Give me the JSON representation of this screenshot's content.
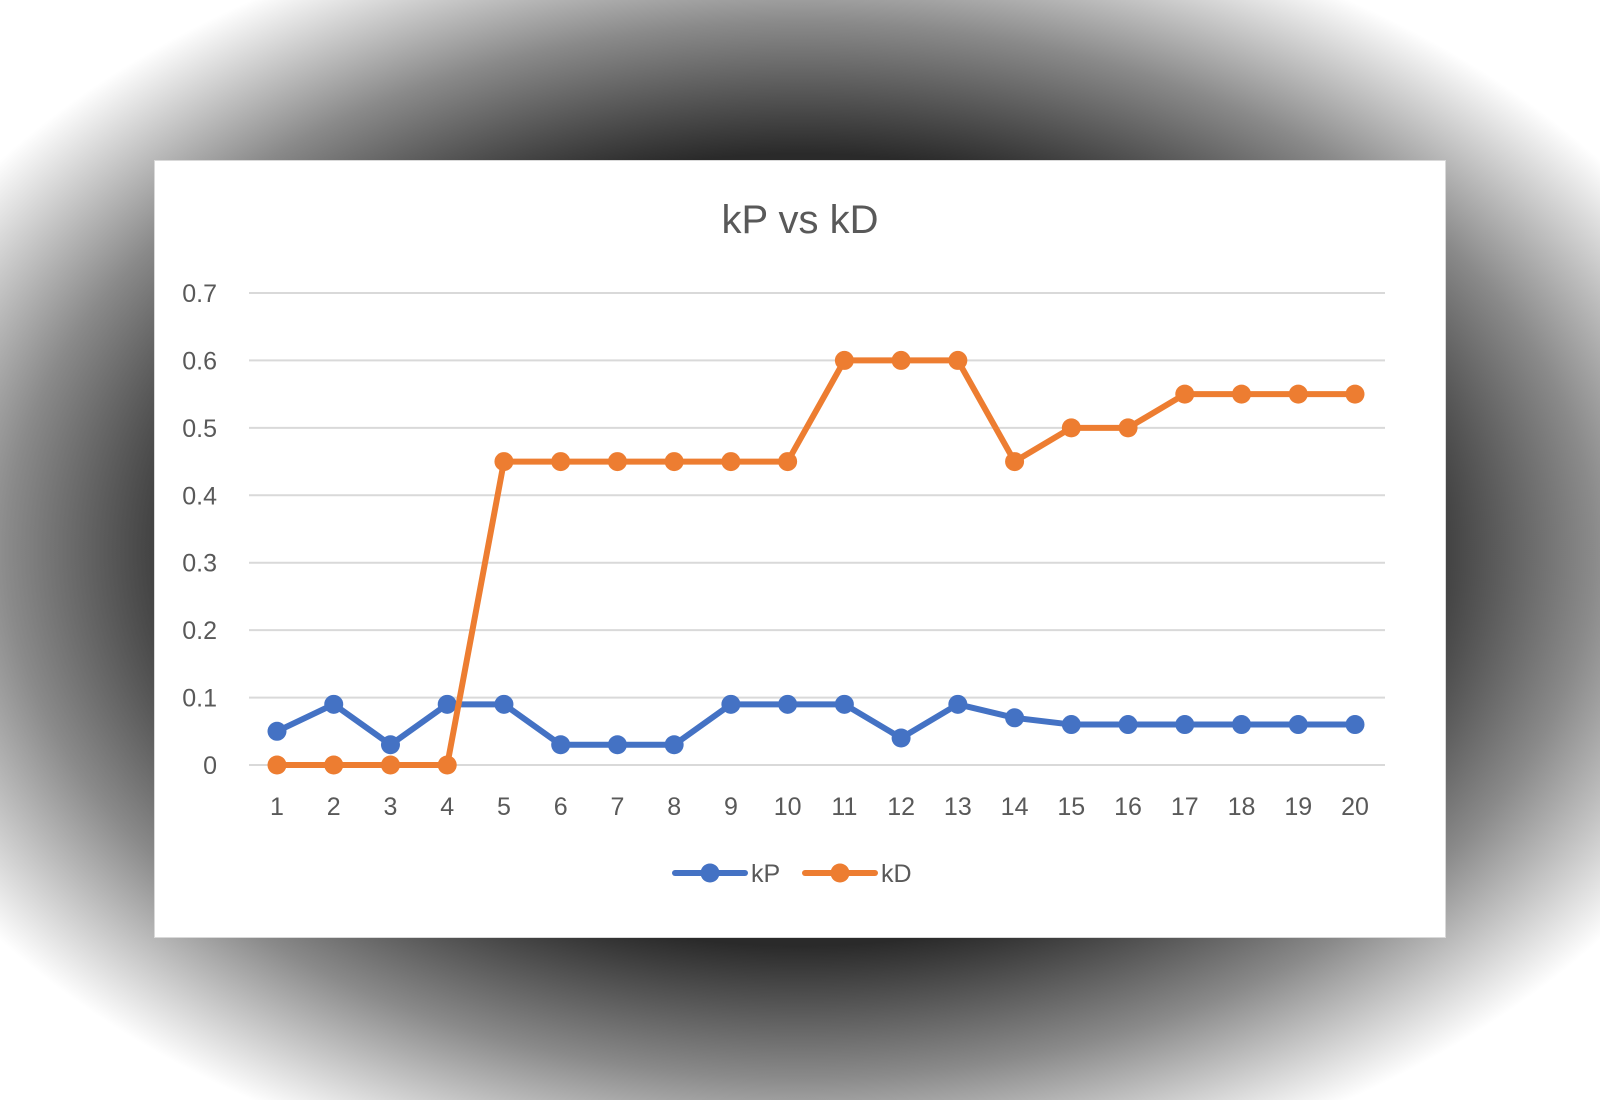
{
  "chart_data": {
    "type": "line",
    "title": "kP vs kD",
    "categories": [
      "1",
      "2",
      "3",
      "4",
      "5",
      "6",
      "7",
      "8",
      "9",
      "10",
      "11",
      "12",
      "13",
      "14",
      "15",
      "16",
      "17",
      "18",
      "19",
      "20"
    ],
    "ylim": [
      0,
      0.7
    ],
    "yticks": [
      "0",
      "0.1",
      "0.2",
      "0.3",
      "0.4",
      "0.5",
      "0.6",
      "0.7"
    ],
    "grid": true,
    "legend_position": "bottom",
    "series": [
      {
        "name": "kP",
        "color": "#4472c4",
        "values": [
          0.05,
          0.09,
          0.03,
          0.09,
          0.09,
          0.03,
          0.03,
          0.03,
          0.09,
          0.09,
          0.09,
          0.04,
          0.09,
          0.07,
          0.06,
          0.06,
          0.06,
          0.06,
          0.06,
          0.06
        ]
      },
      {
        "name": "kD",
        "color": "#ed7d31",
        "values": [
          0,
          0,
          0,
          0,
          0.45,
          0.45,
          0.45,
          0.45,
          0.45,
          0.45,
          0.6,
          0.6,
          0.6,
          0.45,
          0.5,
          0.5,
          0.55,
          0.55,
          0.55,
          0.55
        ]
      }
    ]
  }
}
